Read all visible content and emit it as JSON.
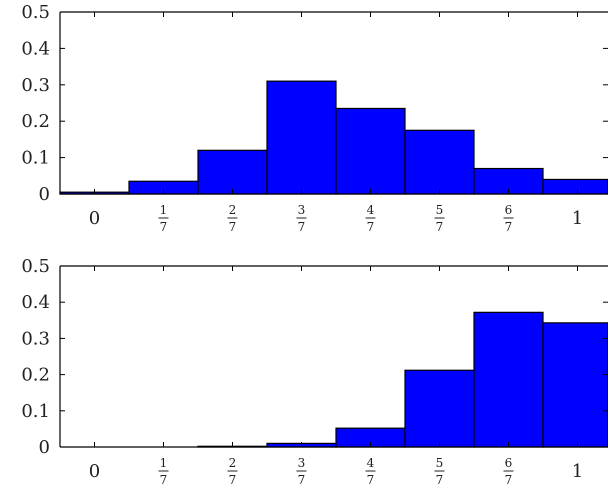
{
  "chart_data": [
    {
      "type": "bar",
      "title": "",
      "xlabel": "",
      "ylabel": "",
      "ylim": [
        0,
        0.5
      ],
      "yticks": [
        "0",
        "0.1",
        "0.2",
        "0.3",
        "0.4",
        "0.5"
      ],
      "categories": [
        {
          "label": "0"
        },
        {
          "num": "1",
          "den": "7"
        },
        {
          "num": "2",
          "den": "7"
        },
        {
          "num": "3",
          "den": "7"
        },
        {
          "num": "4",
          "den": "7"
        },
        {
          "num": "5",
          "den": "7"
        },
        {
          "num": "6",
          "den": "7"
        },
        {
          "label": "1"
        }
      ],
      "values": [
        0.005,
        0.035,
        0.12,
        0.31,
        0.235,
        0.175,
        0.07,
        0.04
      ],
      "bar_color": "#0000ff",
      "grid": false
    },
    {
      "type": "bar",
      "title": "",
      "xlabel": "",
      "ylabel": "",
      "ylim": [
        0,
        0.5
      ],
      "yticks": [
        "0",
        "0.1",
        "0.2",
        "0.3",
        "0.4",
        "0.5"
      ],
      "categories": [
        {
          "label": "0"
        },
        {
          "num": "1",
          "den": "7"
        },
        {
          "num": "2",
          "den": "7"
        },
        {
          "num": "3",
          "den": "7"
        },
        {
          "num": "4",
          "den": "7"
        },
        {
          "num": "5",
          "den": "7"
        },
        {
          "num": "6",
          "den": "7"
        },
        {
          "label": "1"
        }
      ],
      "values": [
        0.0,
        0.0,
        0.002,
        0.01,
        0.052,
        0.212,
        0.372,
        0.343
      ],
      "bar_color": "#0000ff",
      "grid": false
    }
  ]
}
